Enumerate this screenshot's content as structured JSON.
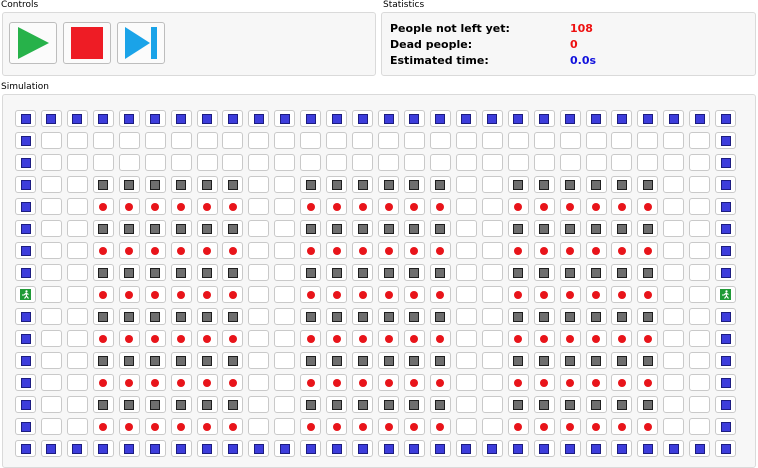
{
  "controls": {
    "title": "Controls",
    "play_icon_color": "#27b24a",
    "stop_icon_color": "#ee1c25",
    "step_icon_color": "#1aa3e8"
  },
  "statistics": {
    "title": "Statistics",
    "rows": [
      {
        "label": "People not left yet:",
        "value": "108",
        "color": "#ee1111"
      },
      {
        "label": "Dead people:",
        "value": "0",
        "color": "#ee1111"
      },
      {
        "label": "Estimated time:",
        "value": "0.0s",
        "color": "#1111dd"
      }
    ]
  },
  "simulation": {
    "title": "Simulation",
    "legend": {
      "W": "wall",
      "S": "seat",
      "P": "person",
      "E": "exit",
      ".": "empty"
    },
    "grid": [
      "WWWWWWWWWWWWWWWWWWWWWWWWWWWW",
      "W..........................W",
      "W..........................W",
      "W..SSSSSS..SSSSSS..SSSSSS..W",
      "W..PPPPPP..PPPPPP..PPPPPP..W",
      "W..SSSSSS..SSSSSS..SSSSSS..W",
      "W..PPPPPP..PPPPPP..PPPPPP..W",
      "W..SSSSSS..SSSSSS..SSSSSS..W",
      "E..PPPPPP..PPPPPP..PPPPPP..E",
      "W..SSSSSS..SSSSSS..SSSSSS..W",
      "W..PPPPPP..PPPPPP..PPPPPP..W",
      "W..SSSSSS..SSSSSS..SSSSSS..W",
      "W..PPPPPP..PPPPPP..PPPPPP..W",
      "W..SSSSSS..SSSSSS..SSSSSS..W",
      "W..PPPPPP..PPPPPP..PPPPPP..W",
      "WWWWWWWWWWWWWWWWWWWWWWWWWWWW"
    ]
  }
}
